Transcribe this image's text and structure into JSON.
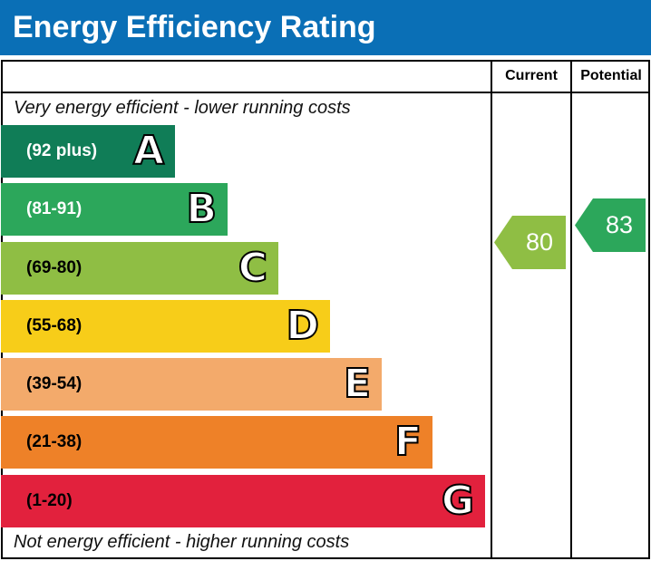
{
  "title": "Energy Efficiency Rating",
  "chart_data": {
    "type": "bar",
    "title": "Energy Efficiency Rating",
    "columns": [
      "Current",
      "Potential"
    ],
    "top_caption": "Very energy efficient - lower running costs",
    "bottom_caption": "Not energy efficient - higher running costs",
    "bands": [
      {
        "letter": "A",
        "range": "(92 plus)",
        "color": "#107d57",
        "text_color": "#ffffff"
      },
      {
        "letter": "B",
        "range": "(81-91)",
        "color": "#2ca75b",
        "text_color": "#ffffff"
      },
      {
        "letter": "C",
        "range": "(69-80)",
        "color": "#8fbe44",
        "text_color": "#000000"
      },
      {
        "letter": "D",
        "range": "(55-68)",
        "color": "#f7cd19",
        "text_color": "#000000"
      },
      {
        "letter": "E",
        "range": "(39-54)",
        "color": "#f3aa6b",
        "text_color": "#000000"
      },
      {
        "letter": "F",
        "range": "(21-38)",
        "color": "#ee8128",
        "text_color": "#000000"
      },
      {
        "letter": "G",
        "range": "(1-20)",
        "color": "#e2213d",
        "text_color": "#000000"
      }
    ],
    "current": {
      "value": "80",
      "band": "C",
      "color": "#8fbe44"
    },
    "potential": {
      "value": "83",
      "band": "B",
      "color": "#2ca75b"
    }
  }
}
